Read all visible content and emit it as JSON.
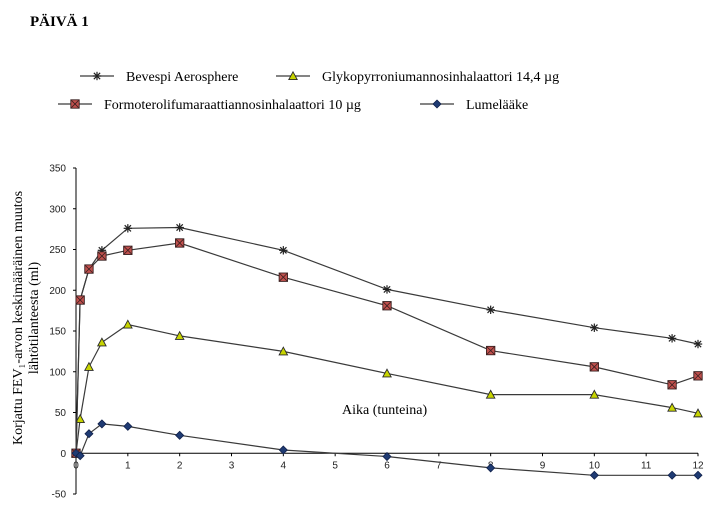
{
  "page_title": "PÄIVÄ 1",
  "chart_data": {
    "type": "line",
    "title": "",
    "xlabel": "",
    "ylabel_lines": [
      "Korjattu FEV₁-arvon keskimääräinen muutos",
      "lähtötilanteesta (ml)"
    ],
    "annotation": "Aika (tunteina)",
    "xlim": [
      0,
      12
    ],
    "ylim": [
      -50,
      350
    ],
    "x_ticks": [
      0,
      1,
      2,
      3,
      4,
      5,
      6,
      7,
      8,
      9,
      10,
      11,
      12
    ],
    "y_ticks": [
      -50,
      0,
      50,
      100,
      150,
      200,
      250,
      300,
      350
    ],
    "grid": false,
    "legend_position": "top",
    "series": [
      {
        "name": "Bevespi Aerosphere",
        "marker": "star",
        "color": "#222222",
        "x": [
          0,
          0.08,
          0.25,
          0.5,
          1,
          2,
          4,
          6,
          8,
          10,
          11.5,
          12
        ],
        "y": [
          0,
          188,
          226,
          249,
          276,
          277,
          249,
          201,
          176,
          154,
          141,
          134
        ]
      },
      {
        "name": "Glykopyrroniumannosinhalaattori 14,4 µg",
        "marker": "triangle",
        "color": "#c7d400",
        "x": [
          0,
          0.08,
          0.25,
          0.5,
          1,
          2,
          4,
          6,
          8,
          10,
          11.5,
          12
        ],
        "y": [
          0,
          42,
          106,
          136,
          158,
          144,
          125,
          98,
          72,
          72,
          56,
          49
        ]
      },
      {
        "name": "Formoterolifumaraattiannosinhalaattori 10 µg",
        "marker": "square",
        "color": "#c0504d",
        "x": [
          0,
          0.08,
          0.25,
          0.5,
          1,
          2,
          4,
          6,
          8,
          10,
          11.5,
          12
        ],
        "y": [
          0,
          188,
          226,
          242,
          249,
          258,
          216,
          181,
          126,
          106,
          84,
          95
        ]
      },
      {
        "name": "Lumelääke",
        "marker": "diamond",
        "color": "#1f3b73",
        "x": [
          0,
          0.08,
          0.25,
          0.5,
          1,
          2,
          4,
          6,
          8,
          10,
          11.5,
          12
        ],
        "y": [
          0,
          -3,
          24,
          36,
          33,
          22,
          4,
          -4,
          -18,
          -27,
          -27,
          -27
        ]
      }
    ]
  }
}
